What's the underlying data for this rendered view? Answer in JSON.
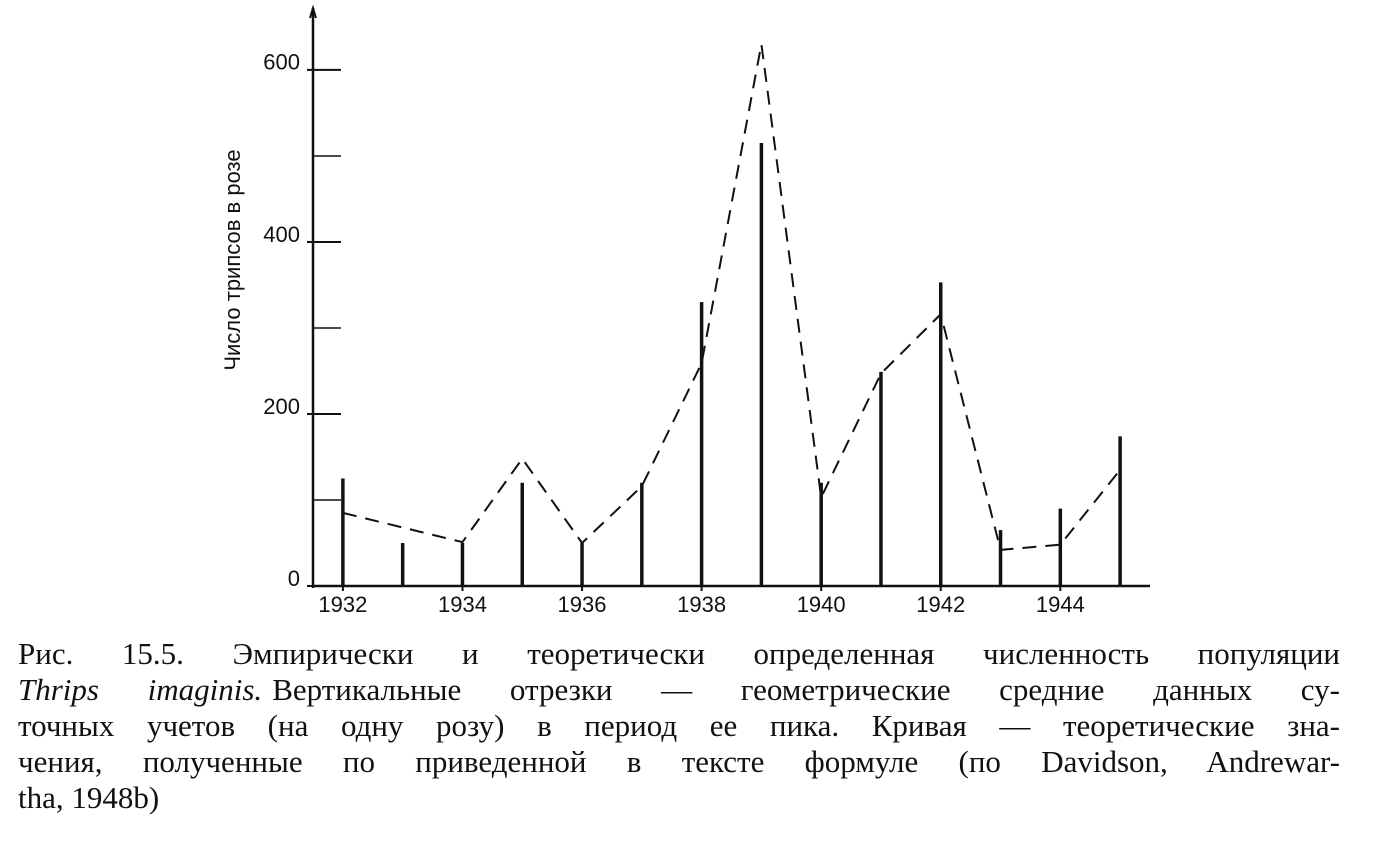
{
  "chart_data": {
    "type": "bar-line",
    "y_label": "Число трипсов в розе",
    "x": [
      1932,
      1933,
      1934,
      1935,
      1936,
      1937,
      1938,
      1939,
      1940,
      1941,
      1942,
      1943,
      1944,
      1945
    ],
    "xlim": [
      1931.5,
      1945.5
    ],
    "xticks": [
      1932,
      1934,
      1936,
      1938,
      1940,
      1942,
      1944
    ],
    "ylim": [
      0,
      672
    ],
    "yticks": [
      0,
      200,
      400,
      600
    ],
    "yminor_ticks": [
      100,
      300,
      500
    ],
    "series": [
      {
        "style": "bar",
        "color": "#111",
        "values": [
          125,
          50,
          50,
          120,
          50,
          120,
          330,
          515,
          120,
          249,
          353,
          65,
          90,
          174
        ]
      },
      {
        "style": "dashed",
        "color": "#111",
        "x": [
          1932,
          1934,
          1935,
          1936,
          1937,
          1938,
          1939,
          1940,
          1941,
          1942,
          1943,
          1944,
          1945
        ],
        "values": [
          85,
          51,
          148,
          50,
          116,
          259,
          630,
          103,
          247,
          316,
          42,
          48,
          135
        ]
      }
    ],
    "caption": [
      "Рис. 15.5. Эмпирически и теоретически определенная численность популяции",
      [
        "Thrips imaginis.",
        "Вертикальные отрезки — геометрические средние данных су-"
      ],
      "точных учетов (на одну розу) в период ее пика. Кривая — теоретические зна-",
      "чения, полученные по приведенной в тексте формуле (по Davidson, Andrewar-",
      "tha, 1948b)"
    ]
  }
}
